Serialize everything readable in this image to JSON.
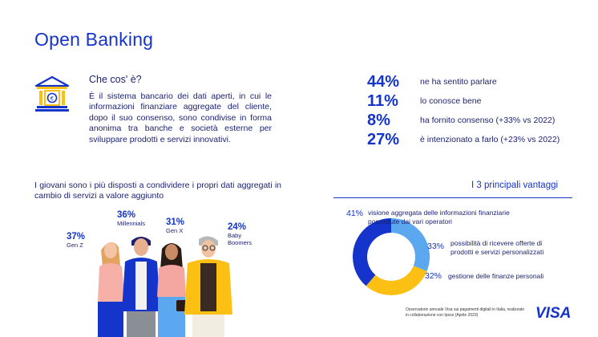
{
  "title": "Open Banking",
  "definition": {
    "question": "Che cos' è?",
    "text": "È il sistema bancario dei dati aperti, in cui le informazioni finanziare aggregate del cliente, dopo il suo consenso, sono condivise in forma anonima tra banche e società esterne per sviluppare prodotti e servizi innovativi."
  },
  "stats": [
    {
      "pct": "44%",
      "label": "ne ha sentito parlare"
    },
    {
      "pct": "11%",
      "label": "lo conosce bene"
    },
    {
      "pct": "8%",
      "label": "ha fornito consenso (+33% vs 2022)"
    },
    {
      "pct": "27%",
      "label": "è intenzionato a farlo (+23% vs 2022)"
    }
  ],
  "young": {
    "text": "I giovani sono i più disposti a condividere i propri dati aggregati in cambio di servizi a valore aggiunto"
  },
  "generations": [
    {
      "pct": "37%",
      "label": "Gen Z"
    },
    {
      "pct": "36%",
      "label": "Millennials"
    },
    {
      "pct": "31%",
      "label": "Gen X"
    },
    {
      "pct": "24%",
      "label": "Baby Boomers"
    }
  ],
  "advantages": {
    "title": "I 3 principali vantaggi",
    "items": [
      {
        "pct": "41%",
        "label": "visione aggregata delle informazioni finanziarie possedute dai vari operatori",
        "color": "#1434cb"
      },
      {
        "pct": "33%",
        "label": "possibilità di ricevere offerte di prodotti e servizi personalizzati",
        "color": "#5ba7f0"
      },
      {
        "pct": "32%",
        "label": "gestione delle finanze personali",
        "color": "#fcc015"
      }
    ]
  },
  "chart_data": {
    "type": "pie",
    "title": "I 3 principali vantaggi",
    "categories": [
      "visione aggregata delle informazioni finanziarie possedute dai vari operatori",
      "possibilità di ricevere offerte di prodotti e servizi personalizzati",
      "gestione delle finanze personali"
    ],
    "values": [
      41,
      33,
      32
    ],
    "colors": [
      "#1434cb",
      "#5ba7f0",
      "#fcc015"
    ]
  },
  "footer": "Osservatorio annuale Visa sui pagamenti digitali in Italia, realizzato in collaborazione con Ipsos (Aprile 2023)",
  "logo": "VISA"
}
